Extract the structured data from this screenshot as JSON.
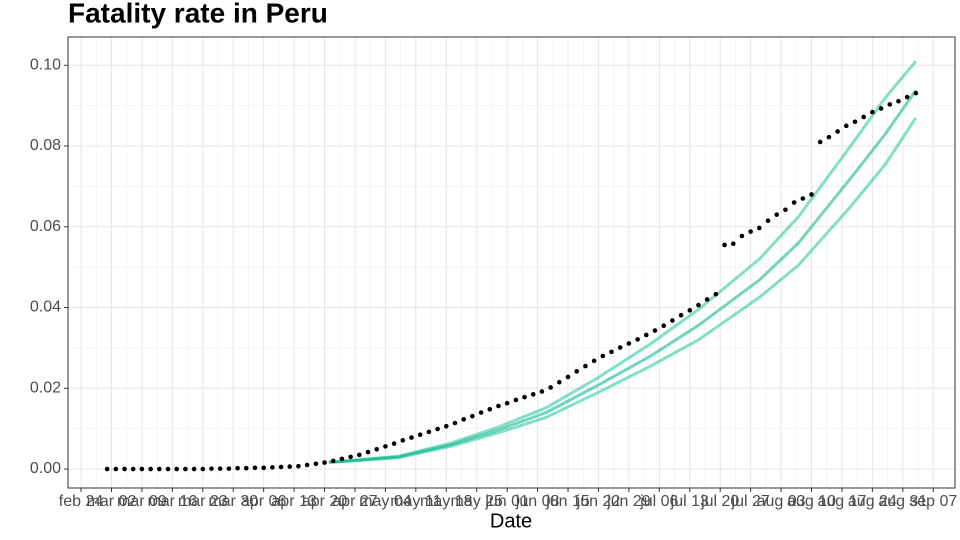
{
  "chart_data": {
    "type": "scatter",
    "title": "Fatality rate in  Peru",
    "x_label": "Date",
    "xlim": [
      "feb 21",
      "sep 12"
    ],
    "xticks": [
      "feb 24",
      "mar 02",
      "mar 09",
      "mar 16",
      "mar 23",
      "mar 30",
      "apr 06",
      "apr 13",
      "apr 20",
      "apr 27",
      "may 04",
      "may 11",
      "may 18",
      "may 25",
      "jun 01",
      "jun 08",
      "jun 15",
      "jun 22",
      "jun 29",
      "jul 06",
      "jul 13",
      "jul 20",
      "jul 27",
      "aug 03",
      "aug 10",
      "aug 17",
      "aug 24",
      "aug 31",
      "sep 07"
    ],
    "ylim": [
      -0.0047,
      0.107
    ],
    "yticks": [
      {
        "value": 0,
        "label": "0.00"
      },
      {
        "value": 0.02,
        "label": "0.02"
      },
      {
        "value": 0.04,
        "label": "0.04"
      },
      {
        "value": 0.06,
        "label": "0.06"
      },
      {
        "value": 0.08,
        "label": "0.08"
      },
      {
        "value": 0.1,
        "label": "0.10"
      }
    ],
    "grid": true,
    "series": [
      {
        "type": "line",
        "color": "#1fc49a",
        "x": [
          "apr 21",
          "apr 28",
          "may 07",
          "may 19",
          "may 30",
          "jun 10",
          "jun 22",
          "jul 04",
          "jul 15",
          "jul 29",
          "aug 07",
          "aug 19",
          "aug 27",
          "sep 03"
        ],
        "values": [
          0.0017,
          0.0023,
          0.0032,
          0.0064,
          0.0104,
          0.0152,
          0.0227,
          0.031,
          0.0395,
          0.052,
          0.0625,
          0.08,
          0.092,
          0.101
        ]
      },
      {
        "type": "line",
        "color": "#1fc49a",
        "x": [
          "apr 21",
          "apr 28",
          "may 07",
          "may 19",
          "may 30",
          "jun 10",
          "jun 22",
          "jul 04",
          "jul 15",
          "jul 29",
          "aug 07",
          "aug 19",
          "aug 27",
          "sep 03"
        ],
        "values": [
          0.0017,
          0.0021,
          0.0028,
          0.0056,
          0.009,
          0.0128,
          0.019,
          0.0255,
          0.032,
          0.0425,
          0.0505,
          0.065,
          0.0755,
          0.087
        ]
      },
      {
        "type": "line",
        "color": "#00b386",
        "x": [
          "apr 21",
          "apr 28",
          "may 07",
          "may 19",
          "may 30",
          "jun 10",
          "jun 22",
          "jul 04",
          "jul 15",
          "jul 29",
          "aug 07",
          "aug 19",
          "aug 27",
          "sep 03"
        ],
        "values": [
          0.0017,
          0.0022,
          0.003,
          0.006,
          0.0097,
          0.014,
          0.0208,
          0.028,
          0.0356,
          0.0468,
          0.056,
          0.072,
          0.083,
          0.0938
        ]
      },
      {
        "type": "scatter",
        "color": "#000000",
        "x": [
          "mar 01",
          "mar 03",
          "mar 05",
          "mar 07",
          "mar 09",
          "mar 11",
          "mar 13",
          "mar 15",
          "mar 17",
          "mar 19",
          "mar 21",
          "mar 23",
          "mar 25",
          "mar 27",
          "mar 29",
          "mar 31",
          "apr 02",
          "apr 04",
          "apr 06",
          "apr 08",
          "apr 10",
          "apr 12",
          "apr 14",
          "apr 16",
          "apr 18",
          "apr 20",
          "apr 22",
          "apr 24",
          "apr 26",
          "apr 28",
          "apr 30",
          "may 02",
          "may 04",
          "may 06",
          "may 08",
          "may 10",
          "may 12",
          "may 14",
          "may 16",
          "may 18",
          "may 20",
          "may 22",
          "may 24",
          "may 26",
          "may 28",
          "may 30",
          "jun 01",
          "jun 03",
          "jun 05",
          "jun 07",
          "jun 09",
          "jun 11",
          "jun 13",
          "jun 15",
          "jun 17",
          "jun 19",
          "jun 21",
          "jun 23",
          "jun 25",
          "jun 27",
          "jun 29",
          "jul 01",
          "jul 03",
          "jul 05",
          "jul 07",
          "jul 09",
          "jul 11",
          "jul 13",
          "jul 15",
          "jul 17",
          "jul 19",
          "jul 21",
          "jul 23",
          "jul 25",
          "jul 27",
          "jul 29",
          "jul 31",
          "aug 02",
          "aug 04",
          "aug 06",
          "aug 08",
          "aug 10",
          "aug 12",
          "aug 14",
          "aug 16",
          "aug 18",
          "aug 20",
          "aug 22",
          "aug 24",
          "aug 26",
          "aug 28",
          "aug 30",
          "sep 01",
          "sep 03"
        ],
        "values": [
          0,
          0,
          0,
          0,
          0,
          0,
          0,
          0,
          0,
          0,
          0,
          0,
          0.0001,
          0.0001,
          0.0001,
          0.0002,
          0.0002,
          0.0003,
          0.0003,
          0.0004,
          0.0005,
          0.0006,
          0.0007,
          0.001,
          0.0013,
          0.0016,
          0.002,
          0.0025,
          0.003,
          0.0035,
          0.0042,
          0.0049,
          0.0056,
          0.0063,
          0.0071,
          0.0078,
          0.0085,
          0.0092,
          0.0099,
          0.0106,
          0.0114,
          0.0123,
          0.0131,
          0.014,
          0.0148,
          0.0156,
          0.0163,
          0.0171,
          0.0178,
          0.0185,
          0.0192,
          0.0202,
          0.0215,
          0.0228,
          0.0242,
          0.0255,
          0.0268,
          0.028,
          0.029,
          0.0301,
          0.0311,
          0.0321,
          0.0332,
          0.0343,
          0.0355,
          0.0368,
          0.0381,
          0.0393,
          0.0406,
          0.042,
          0.0433,
          0.0555,
          0.0558,
          0.0577,
          0.0588,
          0.0597,
          0.0615,
          0.063,
          0.0642,
          0.066,
          0.067,
          0.068,
          0.081,
          0.0822,
          0.0836,
          0.085,
          0.086,
          0.0872,
          0.0884,
          0.0893,
          0.0903,
          0.0911,
          0.0921,
          0.0931
        ]
      }
    ]
  }
}
